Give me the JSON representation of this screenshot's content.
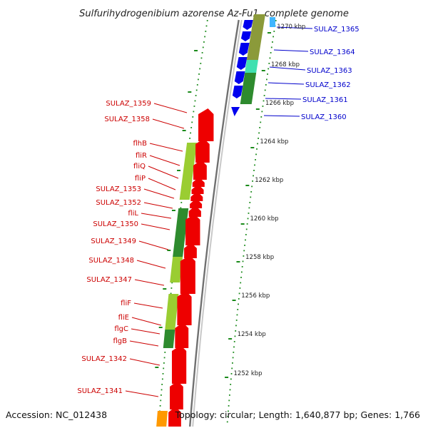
{
  "title": "Sulfurihydrogenibium azorense Az-Fu1, complete genome",
  "footer": {
    "accession": "Accession: NC_012438",
    "topology": "Topology: circular; Length: 1,640,877 bp; Genes: 1,766"
  },
  "colors": {
    "forward_gene": "#0000ee",
    "reverse_gene": "#ee0000",
    "forward_label": "#0000cc",
    "reverse_label": "#cc0000",
    "backbone": "#8a8a8a",
    "scale_dots": "#1a8a1a",
    "cog_dark_green": "#2e8b2e",
    "cog_light_green": "#9acd32",
    "cog_olive": "#8b9a3a",
    "cog_aqua": "#40e0b0",
    "cog_orange": "#ff9900"
  },
  "kbp_ticks": [
    "1270 kbp",
    "1268 kbp",
    "1266 kbp",
    "1264 kbp",
    "1262 kbp",
    "1260 kbp",
    "1258 kbp",
    "1256 kbp",
    "1254 kbp",
    "1252 kbp"
  ],
  "forward_labels": [
    "SULAZ_1365",
    "SULAZ_1364",
    "SULAZ_1363",
    "SULAZ_1362",
    "SULAZ_1361",
    "SULAZ_1360"
  ],
  "reverse_labels": [
    "SULAZ_1359",
    "SULAZ_1358",
    "flhB",
    "fliR",
    "fliQ",
    "fliP",
    "SULAZ_1353",
    "SULAZ_1352",
    "fliL",
    "SULAZ_1350",
    "SULAZ_1349",
    "SULAZ_1348",
    "SULAZ_1347",
    "fliF",
    "fliE",
    "flgC",
    "flgB",
    "SULAZ_1342",
    "SULAZ_1341"
  ]
}
